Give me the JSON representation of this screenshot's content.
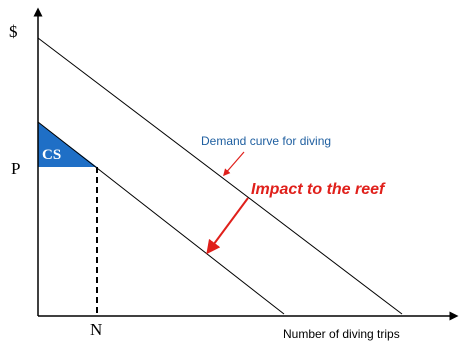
{
  "axes": {
    "y_label": "$",
    "x_label": "Number of diving trips",
    "price_label": "P",
    "quantity_label": "N"
  },
  "consumer_surplus": {
    "label": "CS",
    "fill_color": "#1F6FC6",
    "text_color": "#ffffff"
  },
  "demand_curve": {
    "label": "Demand curve for diving",
    "label_color": "#1F5FA0"
  },
  "shift": {
    "label": "Impact to the reef",
    "color": "#E0201B"
  },
  "colors": {
    "axis": "#000000",
    "lines": "#000000"
  }
}
